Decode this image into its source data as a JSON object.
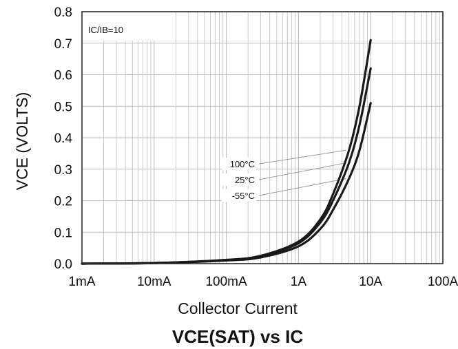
{
  "chart_data": {
    "type": "line",
    "title": "VCE(SAT) vs IC",
    "xlabel": "Collector Current",
    "ylabel": "VCE  (VOLTS)",
    "x_scale": "log",
    "xlim": [
      "1mA",
      "100A"
    ],
    "x_tick_labels": [
      "1mA",
      "10mA",
      "100mA",
      "1A",
      "10A",
      "100A"
    ],
    "ylim": [
      0,
      0.8
    ],
    "y_tick_labels": [
      "0.0",
      "0.1",
      "0.2",
      "0.3",
      "0.4",
      "0.5",
      "0.6",
      "0.7",
      "0.8"
    ],
    "grid": true,
    "condition_label": "IC/IB=10",
    "series": [
      {
        "name": "100°C",
        "x": [
          "1mA",
          "10mA",
          "100mA",
          "300mA",
          "1A",
          "2A",
          "3A",
          "5A",
          "7A",
          "10A"
        ],
        "y": [
          0.0,
          0.002,
          0.012,
          0.025,
          0.07,
          0.14,
          0.22,
          0.36,
          0.5,
          0.71
        ]
      },
      {
        "name": "25°C",
        "x": [
          "1mA",
          "10mA",
          "100mA",
          "300mA",
          "1A",
          "2A",
          "3A",
          "5A",
          "7A",
          "10A"
        ],
        "y": [
          0.0,
          0.002,
          0.011,
          0.023,
          0.065,
          0.13,
          0.2,
          0.32,
          0.44,
          0.62
        ]
      },
      {
        "name": "-55°C",
        "x": [
          "1mA",
          "10mA",
          "100mA",
          "300mA",
          "1A",
          "2A",
          "3A",
          "5A",
          "7A",
          "10A"
        ],
        "y": [
          0.0,
          0.002,
          0.01,
          0.02,
          0.055,
          0.11,
          0.17,
          0.27,
          0.36,
          0.51
        ]
      }
    ]
  },
  "colors": {
    "curve": "#1a1a1a",
    "grid": "#bdbdbd",
    "frame": "#2a2a2a",
    "leader": "#9a9a9a"
  }
}
